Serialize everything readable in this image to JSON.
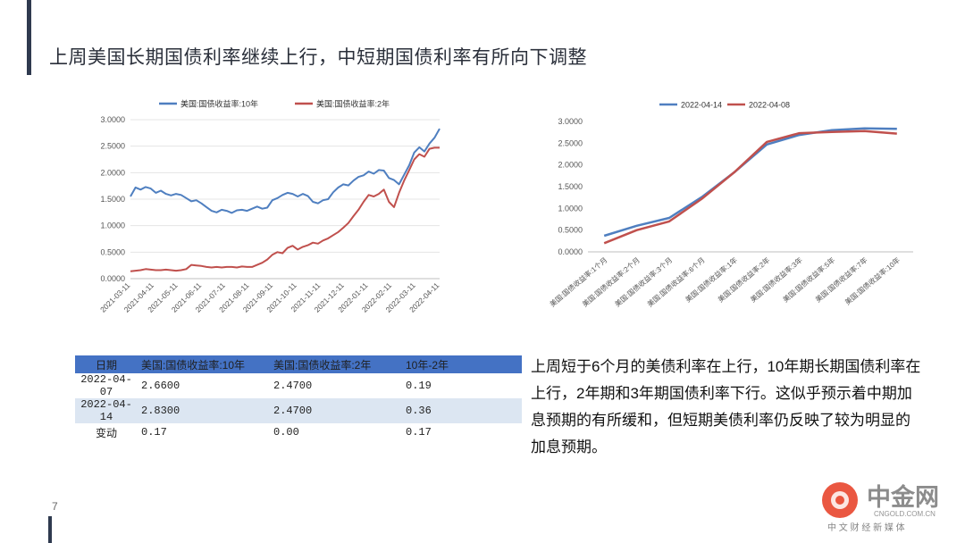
{
  "slide": {
    "title": "上周美国长期国债利率继续上行，中短期国债利率有所向下调整",
    "page_number": "7"
  },
  "chart_data": [
    {
      "type": "line",
      "title": "",
      "legend": [
        "美国:国债收益率:10年",
        "美国:国债收益率:2年"
      ],
      "legend_position": "top",
      "colors": [
        "#4f7fc0",
        "#c0504d"
      ],
      "x_ticks": [
        "2021-03-11",
        "2021-04-11",
        "2021-05-11",
        "2021-06-11",
        "2021-07-11",
        "2021-08-11",
        "2021-09-11",
        "2021-10-11",
        "2021-11-11",
        "2021-12-11",
        "2022-01-11",
        "2022-02-11",
        "2022-03-11",
        "2022-04-11"
      ],
      "ylim": [
        0,
        3
      ],
      "y_ticks": [
        "0.0000",
        "0.5000",
        "1.0000",
        "1.5000",
        "2.0000",
        "2.5000",
        "3.0000"
      ],
      "grid": true,
      "series": [
        {
          "name": "美国:国债收益率:10年",
          "values": [
            1.55,
            1.72,
            1.68,
            1.73,
            1.7,
            1.62,
            1.66,
            1.6,
            1.57,
            1.6,
            1.58,
            1.52,
            1.46,
            1.48,
            1.42,
            1.35,
            1.28,
            1.25,
            1.3,
            1.28,
            1.24,
            1.29,
            1.3,
            1.28,
            1.32,
            1.36,
            1.32,
            1.34,
            1.48,
            1.52,
            1.58,
            1.62,
            1.6,
            1.55,
            1.6,
            1.56,
            1.45,
            1.42,
            1.48,
            1.5,
            1.63,
            1.72,
            1.78,
            1.76,
            1.85,
            1.92,
            1.95,
            2.02,
            1.98,
            2.05,
            2.04,
            1.9,
            1.86,
            1.78,
            1.96,
            2.14,
            2.38,
            2.48,
            2.4,
            2.55,
            2.66,
            2.83
          ]
        },
        {
          "name": "美国:国债收益率:2年",
          "values": [
            0.14,
            0.15,
            0.16,
            0.18,
            0.17,
            0.16,
            0.16,
            0.17,
            0.16,
            0.15,
            0.16,
            0.18,
            0.26,
            0.25,
            0.24,
            0.22,
            0.21,
            0.22,
            0.21,
            0.22,
            0.22,
            0.21,
            0.23,
            0.22,
            0.22,
            0.26,
            0.3,
            0.36,
            0.45,
            0.5,
            0.48,
            0.58,
            0.62,
            0.55,
            0.6,
            0.63,
            0.68,
            0.66,
            0.72,
            0.76,
            0.82,
            0.88,
            0.96,
            1.05,
            1.18,
            1.3,
            1.45,
            1.58,
            1.55,
            1.6,
            1.68,
            1.45,
            1.35,
            1.62,
            1.85,
            2.05,
            2.25,
            2.35,
            2.3,
            2.45,
            2.47,
            2.47
          ]
        }
      ]
    },
    {
      "type": "line",
      "title": "",
      "legend": [
        "2022-04-14",
        "2022-04-08"
      ],
      "legend_position": "top",
      "colors": [
        "#4f7fc0",
        "#c0504d"
      ],
      "categories": [
        "美国:国债收益率:1个月",
        "美国:国债收益率:2个月",
        "美国:国债收益率:3个月",
        "美国:国债收益率:6个月",
        "美国:国债收益率:1年",
        "美国:国债收益率:2年",
        "美国:国债收益率:3年",
        "美国:国债收益率:5年",
        "美国:国债收益率:7年",
        "美国:国债收益率:10年"
      ],
      "ylim": [
        0,
        3
      ],
      "y_ticks": [
        "0.0000",
        "0.5000",
        "1.0000",
        "1.5000",
        "2.0000",
        "2.5000",
        "3.0000"
      ],
      "grid": false,
      "series": [
        {
          "name": "2022-04-14",
          "values": [
            0.37,
            0.6,
            0.78,
            1.26,
            1.83,
            2.47,
            2.69,
            2.8,
            2.84,
            2.83
          ]
        },
        {
          "name": "2022-04-08",
          "values": [
            0.2,
            0.5,
            0.7,
            1.22,
            1.83,
            2.53,
            2.73,
            2.76,
            2.78,
            2.72
          ]
        }
      ]
    }
  ],
  "table": {
    "headers": [
      "日期",
      "美国:国债收益率:10年",
      "美国:国债收益率:2年",
      "10年-2年"
    ],
    "rows": [
      [
        "2022-04-07",
        "2.6600",
        "2.4700",
        "0.19"
      ],
      [
        "2022-04-14",
        "2.8300",
        "2.4700",
        "0.36"
      ],
      [
        "变动",
        "0.17",
        "0.00",
        "0.17"
      ]
    ]
  },
  "paragraph": "上周短于6个月的美债利率在上行，10年期长期国债利率在上行，2年期和3年期国债利率下行。这似乎预示着中期加息预期的有所缓和，但短期美债利率仍反映了较为明显的加息预期。",
  "watermark": {
    "brand": "中金网",
    "url": "CNGOLD.COM.CN",
    "tagline": "中 文 财 经 新 媒 体",
    "accent": "#e8452c"
  }
}
